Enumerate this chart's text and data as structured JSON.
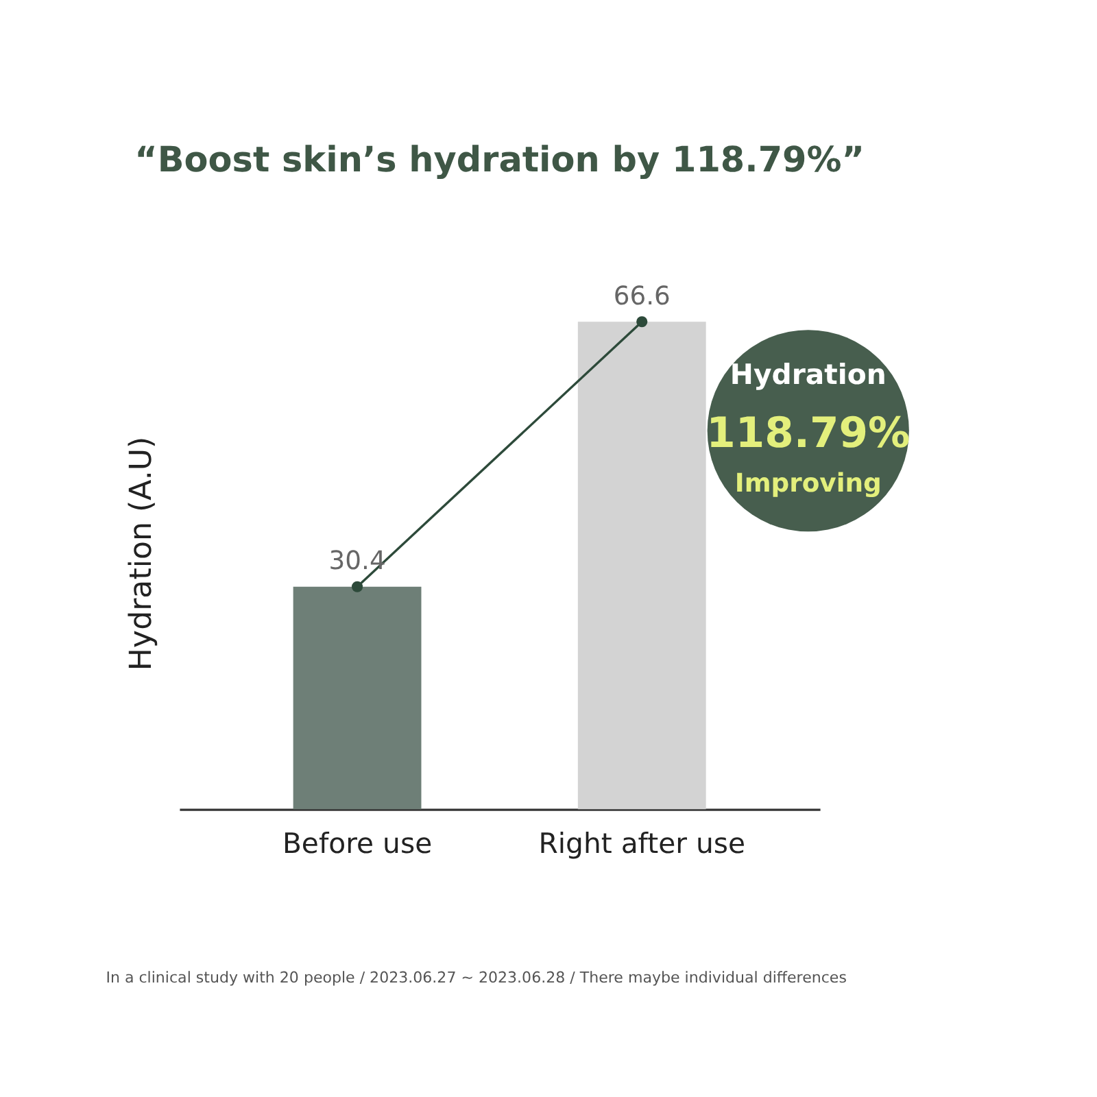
{
  "chart_data": {
    "type": "bar",
    "title": "“Boost skin’s hydration by 118.79%”",
    "ylabel": "Hydration (A.U)",
    "categories": [
      "Before use",
      "Right after use"
    ],
    "series": [
      {
        "type": "bar",
        "values": [
          30.4,
          66.6
        ],
        "value_labels": [
          "30.4",
          "66.6"
        ],
        "colors": [
          "#6e7f77",
          "#d3d3d3"
        ]
      },
      {
        "type": "line",
        "values": [
          30.4,
          66.6
        ],
        "color": "#2d4a3a",
        "marker": "circle"
      }
    ],
    "tick_labels": "x",
    "annotations": [
      "Hydration",
      "118.79%",
      "Improving",
      "In a clinical study with 20 people / 2023.06.27 ~ 2023.06.28 / There maybe individual differences"
    ]
  }
}
